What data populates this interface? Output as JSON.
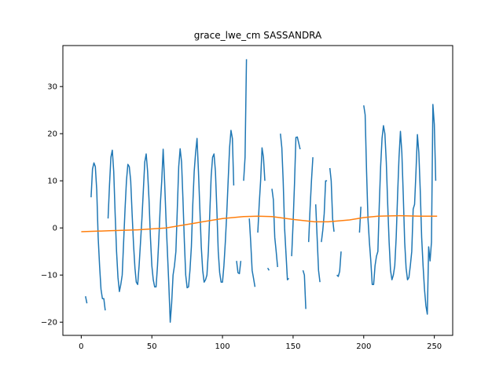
{
  "chart_data": {
    "type": "line",
    "title": "grace_lwe_cm SASSANDRA",
    "xlabel": "",
    "ylabel": "",
    "xlim": [
      -13,
      263
    ],
    "ylim": [
      -22.8,
      38.7
    ],
    "xticks": [
      0,
      50,
      100,
      150,
      200,
      250
    ],
    "yticks": [
      -20,
      -10,
      0,
      10,
      20,
      30
    ],
    "grid": false,
    "legend": "none",
    "colors": {
      "series1": "#1f77b4",
      "series2": "#ff7f0e"
    },
    "series": [
      {
        "color": "#1f77b4",
        "segments": [
          [
            [
              3,
              -14.5
            ],
            [
              4,
              -16
            ]
          ],
          [
            [
              7,
              6.5
            ],
            [
              8,
              12.5
            ],
            [
              9,
              13.8
            ],
            [
              10,
              13
            ],
            [
              11,
              8
            ],
            [
              12,
              -2
            ],
            [
              13,
              -8
            ],
            [
              14,
              -13
            ],
            [
              15,
              -15
            ],
            [
              16,
              -15
            ],
            [
              17,
              -17.5
            ]
          ],
          [
            [
              19,
              2
            ],
            [
              20,
              9
            ],
            [
              21,
              15
            ],
            [
              22,
              16.5
            ],
            [
              23,
              12
            ],
            [
              24,
              3
            ],
            [
              25,
              -5
            ],
            [
              26,
              -10.5
            ],
            [
              27,
              -13.5
            ],
            [
              28,
              -12
            ],
            [
              29,
              -10
            ],
            [
              30,
              -3
            ],
            [
              31,
              4
            ],
            [
              32,
              10
            ],
            [
              33,
              13.5
            ],
            [
              34,
              13
            ],
            [
              35,
              10
            ],
            [
              36,
              3
            ],
            [
              37,
              -3.5
            ],
            [
              38,
              -8.5
            ],
            [
              39,
              -11.5
            ],
            [
              40,
              -12
            ],
            [
              41,
              -8
            ],
            [
              42,
              -3
            ],
            [
              43,
              2
            ],
            [
              44,
              8
            ],
            [
              45,
              14
            ],
            [
              46,
              15.7
            ],
            [
              47,
              12
            ],
            [
              48,
              6
            ],
            [
              49,
              -2
            ],
            [
              50,
              -8
            ],
            [
              51,
              -11
            ],
            [
              52,
              -12.5
            ],
            [
              53,
              -12.5
            ],
            [
              54,
              -8
            ],
            [
              55,
              -2
            ],
            [
              56,
              5
            ],
            [
              57,
              10
            ],
            [
              58,
              16.7
            ],
            [
              59,
              10
            ],
            [
              60,
              2
            ],
            [
              61,
              -5
            ],
            [
              62,
              -12
            ],
            [
              63,
              -20
            ],
            [
              64,
              -16
            ],
            [
              65,
              -10
            ],
            [
              66,
              -8
            ],
            [
              67,
              -5
            ],
            [
              68,
              4
            ],
            [
              69,
              13
            ],
            [
              70,
              16.8
            ],
            [
              71,
              14
            ],
            [
              72,
              6
            ],
            [
              73,
              -3
            ],
            [
              74,
              -10
            ],
            [
              75,
              -12.7
            ],
            [
              76,
              -12.5
            ],
            [
              77,
              -9
            ],
            [
              78,
              -4
            ],
            [
              79,
              5
            ],
            [
              80,
              12
            ],
            [
              81,
              16
            ],
            [
              82,
              19
            ],
            [
              83,
              12
            ],
            [
              84,
              4
            ],
            [
              85,
              -4
            ],
            [
              86,
              -9
            ],
            [
              87,
              -11.5
            ],
            [
              88,
              -11
            ],
            [
              89,
              -10
            ],
            [
              90,
              -5
            ],
            [
              91,
              3
            ],
            [
              92,
              11
            ],
            [
              93,
              15
            ],
            [
              94,
              15.7
            ],
            [
              95,
              12
            ],
            [
              96,
              4
            ],
            [
              97,
              -5
            ],
            [
              98,
              -9.5
            ],
            [
              99,
              -11.5
            ],
            [
              100,
              -11.5
            ],
            [
              101,
              -8
            ],
            [
              102,
              -3
            ],
            [
              103,
              3
            ],
            [
              104,
              10
            ],
            [
              105,
              17
            ],
            [
              106,
              20.7
            ],
            [
              107,
              19
            ],
            [
              108,
              9
            ]
          ],
          [
            [
              110,
              -7
            ],
            [
              111,
              -9.5
            ],
            [
              112,
              -9.7
            ],
            [
              113,
              -7
            ]
          ],
          [
            [
              115,
              10
            ],
            [
              116,
              15
            ],
            [
              117,
              35.8
            ]
          ],
          [
            [
              119,
              2
            ],
            [
              120,
              -3
            ],
            [
              121,
              -9
            ],
            [
              122,
              -10.7
            ],
            [
              123,
              -12.5
            ]
          ],
          [
            [
              125,
              -1
            ],
            [
              126,
              5
            ],
            [
              127,
              10
            ],
            [
              128,
              17
            ],
            [
              129,
              15
            ],
            [
              130,
              10
            ]
          ],
          [
            [
              132,
              -8.5
            ],
            [
              133,
              -9
            ]
          ],
          [
            [
              135,
              8.3
            ],
            [
              136,
              6
            ],
            [
              137,
              -2
            ],
            [
              138,
              -5
            ],
            [
              139,
              -8.3
            ]
          ],
          [
            [
              141,
              20
            ],
            [
              142,
              17
            ],
            [
              143,
              10
            ],
            [
              144,
              0
            ],
            [
              145,
              -5.5
            ],
            [
              146,
              -11
            ],
            [
              147,
              -10.7
            ]
          ],
          [
            [
              149,
              -6
            ],
            [
              150,
              1
            ],
            [
              151,
              9.3
            ],
            [
              152,
              19.2
            ],
            [
              153,
              19.3
            ],
            [
              154,
              18
            ],
            [
              155,
              16.7
            ]
          ],
          [
            [
              157,
              -9
            ],
            [
              158,
              -10
            ],
            [
              159,
              -17.2
            ]
          ],
          [
            [
              161,
              -3
            ],
            [
              162,
              4
            ],
            [
              163,
              10
            ],
            [
              164,
              15
            ]
          ],
          [
            [
              166,
              5
            ],
            [
              167,
              -2
            ],
            [
              168,
              -9
            ],
            [
              169,
              -11.5
            ]
          ],
          [
            [
              170,
              -3
            ],
            [
              171,
              -0.5
            ],
            [
              172,
              3
            ],
            [
              173,
              10
            ],
            [
              174,
              10
            ]
          ],
          [
            [
              176,
              12.7
            ],
            [
              177,
              10
            ],
            [
              178,
              2
            ],
            [
              179,
              -0.8
            ]
          ],
          [
            [
              181,
              -10
            ],
            [
              182,
              -10.3
            ],
            [
              183,
              -9.2
            ],
            [
              184,
              -5
            ]
          ],
          [
            [
              197,
              -1
            ],
            [
              198,
              4.5
            ]
          ],
          [
            [
              200,
              26
            ],
            [
              201,
              24
            ],
            [
              202,
              12
            ],
            [
              203,
              2
            ],
            [
              204,
              -3
            ],
            [
              205,
              -7
            ],
            [
              206,
              -12
            ],
            [
              207,
              -12
            ],
            [
              208,
              -8
            ],
            [
              209,
              -6
            ],
            [
              210,
              -5
            ],
            [
              211,
              5
            ],
            [
              212,
              13
            ],
            [
              213,
              19
            ],
            [
              214,
              21.7
            ],
            [
              215,
              20
            ],
            [
              216,
              14
            ],
            [
              217,
              5
            ],
            [
              218,
              -3
            ],
            [
              219,
              -9
            ],
            [
              220,
              -11
            ],
            [
              221,
              -10
            ],
            [
              222,
              -8
            ],
            [
              223,
              -2
            ],
            [
              224,
              7
            ],
            [
              225,
              15
            ],
            [
              226,
              20.5
            ],
            [
              227,
              16
            ],
            [
              228,
              7
            ],
            [
              229,
              -3
            ],
            [
              230,
              -8.5
            ],
            [
              231,
              -11
            ],
            [
              232,
              -10.5
            ],
            [
              233,
              -8
            ],
            [
              234,
              -5
            ],
            [
              235,
              4
            ],
            [
              236,
              5
            ],
            [
              237,
              12
            ],
            [
              238,
              19.8
            ],
            [
              239,
              16
            ],
            [
              240,
              8
            ],
            [
              241,
              -2
            ],
            [
              242,
              -8
            ],
            [
              243,
              -13
            ],
            [
              244,
              -16.5
            ],
            [
              245,
              -18.3
            ],
            [
              246,
              -4
            ],
            [
              247,
              -7
            ],
            [
              248,
              -3
            ],
            [
              249,
              26.2
            ],
            [
              250,
              22
            ],
            [
              251,
              10
            ]
          ]
        ]
      },
      {
        "color": "#ff7f0e",
        "segments": [
          [
            [
              0,
              -0.8
            ],
            [
              20,
              -0.6
            ],
            [
              40,
              -0.4
            ],
            [
              60,
              0
            ],
            [
              80,
              1
            ],
            [
              100,
              2
            ],
            [
              115,
              2.4
            ],
            [
              125,
              2.5
            ],
            [
              135,
              2.4
            ],
            [
              150,
              1.8
            ],
            [
              165,
              1.3
            ],
            [
              175,
              1.3
            ],
            [
              190,
              1.7
            ],
            [
              200,
              2.2
            ],
            [
              210,
              2.5
            ],
            [
              225,
              2.6
            ],
            [
              240,
              2.5
            ],
            [
              252,
              2.5
            ]
          ]
        ]
      }
    ]
  }
}
